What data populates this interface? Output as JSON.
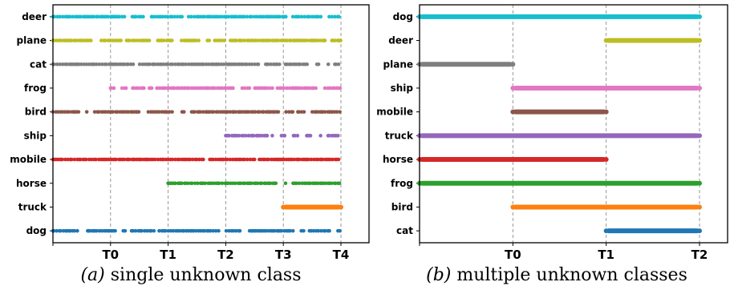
{
  "chart_data": [
    {
      "type": "scatter",
      "caption_letter": "(a)",
      "caption_text": " single unknown class",
      "x_ticks": [
        "T0",
        "T1",
        "T2",
        "T3",
        "T4"
      ],
      "xlim": [
        -1,
        4
      ],
      "grid": "vertical-dashed",
      "series": [
        {
          "name": "deer",
          "color": "#17becf",
          "start": -1,
          "end": 4,
          "density": "sparse"
        },
        {
          "name": "plane",
          "color": "#bcbd22",
          "start": -1,
          "end": 4,
          "density": "sparse"
        },
        {
          "name": "cat",
          "color": "#7f7f7f",
          "start": -1,
          "end": 4,
          "density": "sparse"
        },
        {
          "name": "frog",
          "color": "#e377c2",
          "start": 0,
          "end": 4,
          "density": "sparse"
        },
        {
          "name": "bird",
          "color": "#8c564b",
          "start": -1,
          "end": 4,
          "density": "sparse"
        },
        {
          "name": "ship",
          "color": "#9467bd",
          "start": 2,
          "end": 4,
          "density": "sparse"
        },
        {
          "name": "mobile",
          "color": "#d62728",
          "start": -1,
          "end": 4,
          "density": "sparse"
        },
        {
          "name": "horse",
          "color": "#2ca02c",
          "start": 1,
          "end": 4,
          "density": "sparse"
        },
        {
          "name": "truck",
          "color": "#ff7f0e",
          "start": 3,
          "end": 4,
          "density": "dense"
        },
        {
          "name": "dog",
          "color": "#1f77b4",
          "start": -1,
          "end": 4,
          "density": "sparse"
        }
      ]
    },
    {
      "type": "scatter",
      "caption_letter": "(b)",
      "caption_text": " multiple unknown classes",
      "x_ticks": [
        "T0",
        "T1",
        "T2"
      ],
      "xlim": [
        -1,
        2
      ],
      "grid": "vertical-dashed",
      "series": [
        {
          "name": "dog",
          "color": "#17becf",
          "start": -1,
          "end": 2,
          "density": "dense"
        },
        {
          "name": "deer",
          "color": "#bcbd22",
          "start": 1,
          "end": 2,
          "density": "dense"
        },
        {
          "name": "plane",
          "color": "#7f7f7f",
          "start": -1,
          "end": 0,
          "density": "dense"
        },
        {
          "name": "ship",
          "color": "#e377c2",
          "start": 0,
          "end": 2,
          "density": "dense"
        },
        {
          "name": "mobile",
          "color": "#8c564b",
          "start": 0,
          "end": 1,
          "density": "dense"
        },
        {
          "name": "truck",
          "color": "#9467bd",
          "start": -1,
          "end": 2,
          "density": "dense"
        },
        {
          "name": "horse",
          "color": "#d62728",
          "start": -1,
          "end": 1,
          "density": "dense"
        },
        {
          "name": "frog",
          "color": "#2ca02c",
          "start": -1,
          "end": 2,
          "density": "dense"
        },
        {
          "name": "bird",
          "color": "#ff7f0e",
          "start": 0,
          "end": 2,
          "density": "dense"
        },
        {
          "name": "cat",
          "color": "#1f77b4",
          "start": 1,
          "end": 2,
          "density": "dense"
        }
      ]
    }
  ]
}
